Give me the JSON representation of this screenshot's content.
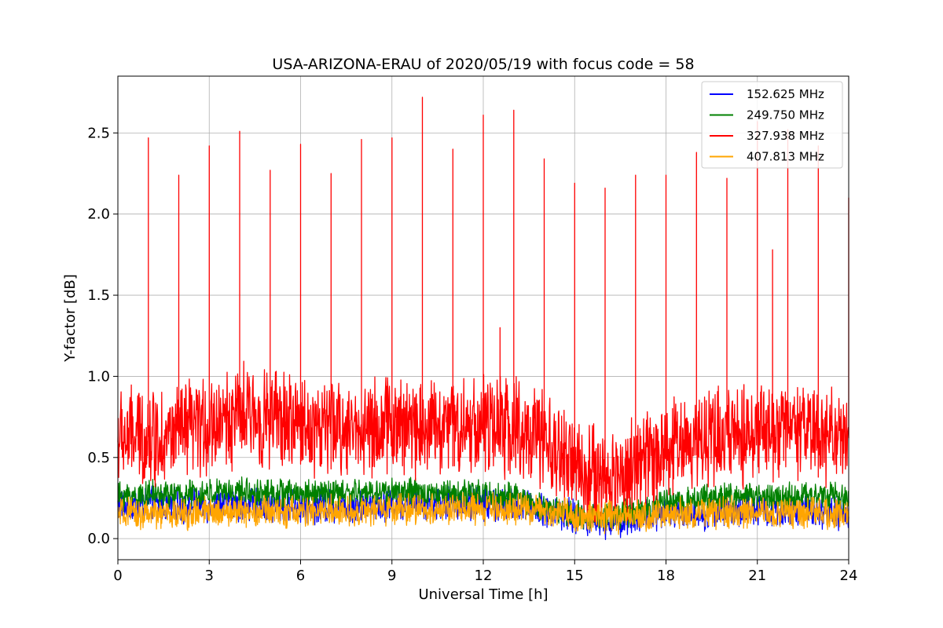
{
  "chart_data": {
    "type": "line",
    "title": "USA-ARIZONA-ERAU of 2020/05/19 with focus code = 58",
    "xlabel": "Universal Time [h]",
    "ylabel": "Y-factor [dB]",
    "xlim": [
      0,
      24
    ],
    "ylim": [
      -0.13,
      2.85
    ],
    "xticks": [
      0,
      3,
      6,
      9,
      12,
      15,
      18,
      21,
      24
    ],
    "yticks": [
      0.0,
      0.5,
      1.0,
      1.5,
      2.0,
      2.5
    ],
    "xtick_labels": [
      "0",
      "3",
      "6",
      "9",
      "12",
      "15",
      "18",
      "21",
      "24"
    ],
    "ytick_labels": [
      "0.0",
      "0.5",
      "1.0",
      "1.5",
      "2.0",
      "2.5"
    ],
    "grid": true,
    "legend_position": "top-right",
    "series": [
      {
        "name": "152.625 MHz",
        "color": "#0000ff",
        "x": [
          0,
          1,
          2,
          3,
          4,
          5,
          6,
          7,
          8,
          9,
          10,
          11,
          12,
          13,
          14,
          15,
          16,
          17,
          18,
          19,
          20,
          21,
          22,
          23,
          24
        ],
        "values": [
          0.2,
          0.21,
          0.2,
          0.2,
          0.21,
          0.2,
          0.2,
          0.2,
          0.21,
          0.22,
          0.22,
          0.22,
          0.22,
          0.21,
          0.18,
          0.13,
          0.11,
          0.13,
          0.15,
          0.16,
          0.17,
          0.17,
          0.17,
          0.17,
          0.16
        ],
        "noise": 0.12
      },
      {
        "name": "249.750 MHz",
        "color": "#008000",
        "x": [
          0,
          1,
          2,
          3,
          4,
          5,
          6,
          7,
          8,
          9,
          10,
          11,
          12,
          13,
          14,
          15,
          16,
          17,
          18,
          19,
          20,
          21,
          22,
          23,
          24
        ],
        "values": [
          0.26,
          0.27,
          0.27,
          0.28,
          0.29,
          0.28,
          0.28,
          0.28,
          0.28,
          0.29,
          0.28,
          0.28,
          0.27,
          0.25,
          0.2,
          0.15,
          0.14,
          0.17,
          0.21,
          0.24,
          0.26,
          0.26,
          0.26,
          0.26,
          0.25
        ],
        "noise": 0.1
      },
      {
        "name": "327.938 MHz",
        "color": "#ff0000",
        "x": [
          0,
          1,
          2,
          3,
          4,
          5,
          6,
          7,
          8,
          9,
          10,
          11,
          12,
          13,
          14,
          15,
          16,
          17,
          18,
          19,
          20,
          21,
          22,
          23,
          24
        ],
        "values": [
          0.62,
          0.63,
          0.64,
          0.7,
          0.76,
          0.74,
          0.7,
          0.68,
          0.68,
          0.7,
          0.7,
          0.7,
          0.7,
          0.68,
          0.58,
          0.44,
          0.36,
          0.45,
          0.56,
          0.62,
          0.64,
          0.66,
          0.65,
          0.64,
          0.62
        ],
        "noise": 0.35,
        "spikes": [
          [
            1,
            2.47
          ],
          [
            2,
            2.24
          ],
          [
            3,
            2.42
          ],
          [
            4,
            2.51
          ],
          [
            5,
            2.27
          ],
          [
            6,
            2.43
          ],
          [
            7,
            2.25
          ],
          [
            8,
            2.46
          ],
          [
            9,
            2.47
          ],
          [
            10,
            2.72
          ],
          [
            11,
            2.4
          ],
          [
            12,
            2.61
          ],
          [
            12.55,
            1.3
          ],
          [
            13,
            2.64
          ],
          [
            14,
            2.34
          ],
          [
            15,
            2.19
          ],
          [
            16,
            2.16
          ],
          [
            17,
            2.24
          ],
          [
            18,
            2.24
          ],
          [
            19,
            2.38
          ],
          [
            20,
            2.22
          ],
          [
            21,
            2.57
          ],
          [
            21.5,
            1.78
          ],
          [
            22,
            2.52
          ],
          [
            23,
            2.42
          ],
          [
            24,
            2.1
          ]
        ]
      },
      {
        "name": "407.813 MHz",
        "color": "#ffa500",
        "x": [
          0,
          1,
          2,
          3,
          4,
          5,
          6,
          7,
          8,
          9,
          10,
          11,
          12,
          13,
          14,
          15,
          16,
          17,
          18,
          19,
          20,
          21,
          22,
          23,
          24
        ],
        "values": [
          0.15,
          0.15,
          0.15,
          0.16,
          0.17,
          0.17,
          0.16,
          0.17,
          0.17,
          0.18,
          0.18,
          0.18,
          0.18,
          0.18,
          0.17,
          0.15,
          0.13,
          0.13,
          0.15,
          0.16,
          0.16,
          0.16,
          0.16,
          0.16,
          0.15
        ],
        "noise": 0.11
      }
    ]
  }
}
